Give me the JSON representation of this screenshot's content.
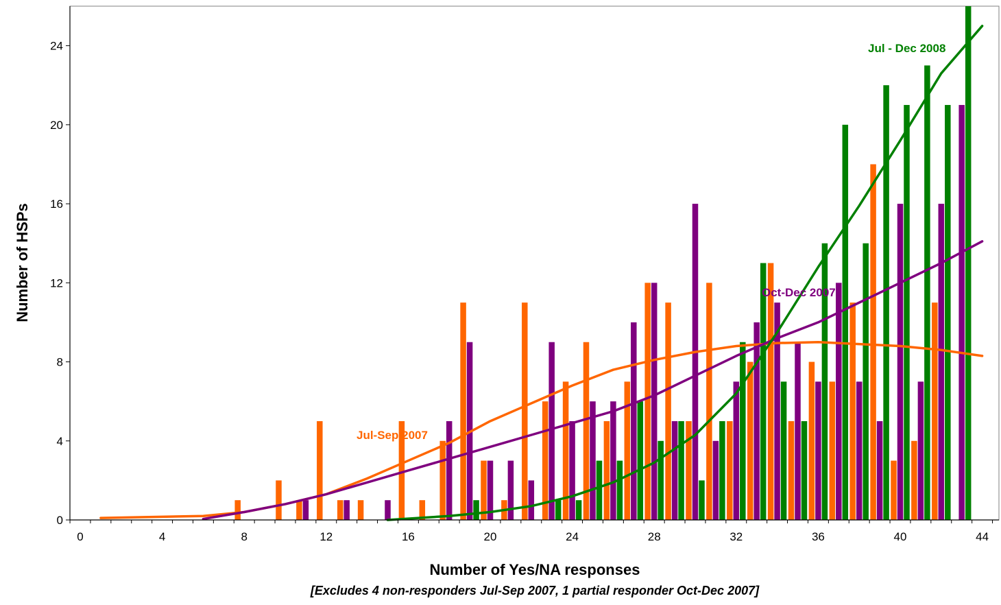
{
  "chart_data": {
    "type": "bar",
    "xlabel": "Number of Yes/NA responses",
    "ylabel": "Number of HSPs",
    "note": "[Excludes 4 non-responders Jul-Sep 2007, 1 partial responder Oct-Dec 2007]",
    "xlim": [
      0,
      44
    ],
    "ylim": [
      0,
      26
    ],
    "x_ticks": [
      0,
      4,
      8,
      12,
      16,
      20,
      24,
      28,
      32,
      36,
      40,
      44
    ],
    "y_ticks": [
      0,
      4,
      8,
      12,
      16,
      20,
      24
    ],
    "grid": false,
    "legend": "inline labels",
    "x": [
      0,
      1,
      2,
      3,
      4,
      5,
      6,
      7,
      8,
      9,
      10,
      11,
      12,
      13,
      14,
      15,
      16,
      17,
      18,
      19,
      20,
      21,
      22,
      23,
      24,
      25,
      26,
      27,
      28,
      29,
      30,
      31,
      32,
      33,
      34,
      35,
      36,
      37,
      38,
      39,
      40,
      41,
      42,
      43,
      44
    ],
    "series": [
      {
        "name": "Jul-Sep 2007",
        "color": "#FF6600",
        "values": [
          0,
          0,
          0,
          0,
          0,
          0,
          0,
          0,
          1,
          0,
          2,
          1,
          5,
          1,
          1,
          0,
          5,
          1,
          4,
          11,
          3,
          1,
          11,
          6,
          7,
          9,
          5,
          7,
          12,
          11,
          5,
          12,
          5,
          8,
          13,
          5,
          8,
          7,
          11,
          18,
          3,
          4,
          11,
          0,
          0
        ],
        "trend": [
          [
            1,
            0.1
          ],
          [
            6,
            0.2
          ],
          [
            8,
            0.4
          ],
          [
            10,
            0.8
          ],
          [
            12,
            1.3
          ],
          [
            14,
            2.1
          ],
          [
            16,
            3.0
          ],
          [
            18,
            3.9
          ],
          [
            20,
            5.0
          ],
          [
            22,
            5.9
          ],
          [
            24,
            6.8
          ],
          [
            26,
            7.6
          ],
          [
            28,
            8.1
          ],
          [
            30,
            8.5
          ],
          [
            32,
            8.8
          ],
          [
            34,
            8.95
          ],
          [
            36,
            9.0
          ],
          [
            38,
            8.9
          ],
          [
            40,
            8.8
          ],
          [
            42,
            8.6
          ],
          [
            44,
            8.3
          ]
        ]
      },
      {
        "name": "Oct-Dec 2007",
        "color": "#7F007F",
        "values": [
          0,
          0,
          0,
          0,
          0,
          0,
          0,
          0,
          0,
          0,
          0,
          1,
          0,
          1,
          0,
          1,
          0,
          0,
          5,
          9,
          3,
          3,
          2,
          9,
          5,
          6,
          6,
          10,
          12,
          5,
          16,
          4,
          7,
          10,
          11,
          9,
          7,
          12,
          7,
          5,
          16,
          7,
          16,
          21,
          0
        ],
        "trend": [
          [
            6,
            0.05
          ],
          [
            8,
            0.4
          ],
          [
            10,
            0.8
          ],
          [
            12,
            1.3
          ],
          [
            14,
            1.9
          ],
          [
            16,
            2.5
          ],
          [
            18,
            3.1
          ],
          [
            20,
            3.7
          ],
          [
            22,
            4.3
          ],
          [
            24,
            4.9
          ],
          [
            26,
            5.5
          ],
          [
            28,
            6.3
          ],
          [
            30,
            7.3
          ],
          [
            32,
            8.3
          ],
          [
            34,
            9.2
          ],
          [
            36,
            10.0
          ],
          [
            38,
            11.0
          ],
          [
            40,
            12.0
          ],
          [
            42,
            13.0
          ],
          [
            44,
            14.1
          ]
        ]
      },
      {
        "name": "Jul - Dec 2008",
        "color": "#008000",
        "values": [
          0,
          0,
          0,
          0,
          0,
          0,
          0,
          0,
          0,
          0,
          0,
          0,
          0,
          0,
          0,
          0,
          0,
          0,
          0,
          1,
          0,
          0,
          0,
          1,
          1,
          3,
          3,
          6,
          4,
          5,
          2,
          5,
          9,
          13,
          7,
          5,
          14,
          20,
          14,
          22,
          21,
          23,
          21,
          26,
          0
        ],
        "trend": [
          [
            15,
            0.0
          ],
          [
            18,
            0.2
          ],
          [
            20,
            0.4
          ],
          [
            22,
            0.7
          ],
          [
            24,
            1.2
          ],
          [
            26,
            1.9
          ],
          [
            28,
            2.9
          ],
          [
            30,
            4.3
          ],
          [
            32,
            6.4
          ],
          [
            34,
            9.5
          ],
          [
            36,
            12.8
          ],
          [
            38,
            15.9
          ],
          [
            40,
            19.2
          ],
          [
            42,
            22.6
          ],
          [
            44,
            25.0
          ]
        ]
      }
    ]
  }
}
